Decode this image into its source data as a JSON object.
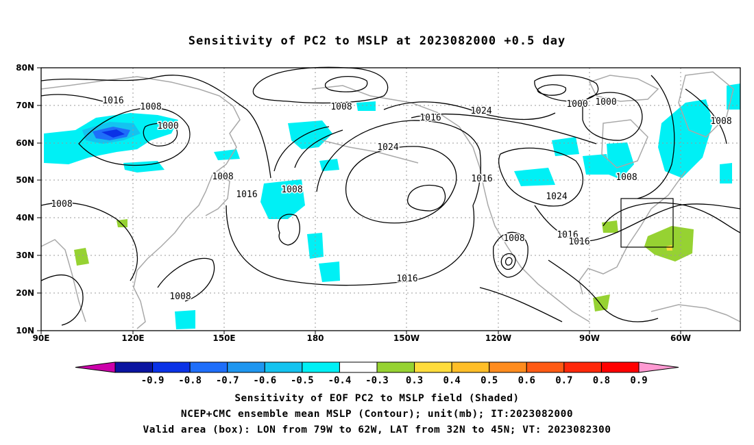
{
  "title": "Sensitivity of PC2 to MSLP at 2023082000 +0.5 day",
  "axes": {
    "lat_labels": [
      "80N",
      "70N",
      "60N",
      "50N",
      "40N",
      "30N",
      "20N",
      "10N"
    ],
    "lon_labels": [
      "90E",
      "120E",
      "150E",
      "180",
      "150W",
      "120W",
      "90W",
      "60W"
    ]
  },
  "contour_labels": [
    {
      "text": "1016"
    },
    {
      "text": "1008"
    },
    {
      "text": "1000"
    },
    {
      "text": "1008"
    },
    {
      "text": "1008"
    },
    {
      "text": "1016"
    },
    {
      "text": "1008"
    },
    {
      "text": "1008"
    },
    {
      "text": "1008"
    },
    {
      "text": "1016"
    },
    {
      "text": "1024"
    },
    {
      "text": "1016"
    },
    {
      "text": "1016"
    },
    {
      "text": "1024"
    },
    {
      "text": "1008"
    },
    {
      "text": "1008"
    },
    {
      "text": "1016"
    },
    {
      "text": "1016"
    },
    {
      "text": "1000"
    },
    {
      "text": "1000"
    },
    {
      "text": "1024"
    },
    {
      "text": "1008"
    }
  ],
  "colorbar": {
    "colors": [
      "#cc00aa",
      "#0a14a0",
      "#0a32e6",
      "#1e6efa",
      "#1e96f0",
      "#14c3f0",
      "#00f0f5",
      "#ffffff",
      "#96d232",
      "#ffdc3c",
      "#ffbe28",
      "#ff8c1e",
      "#ff5a14",
      "#ff280a",
      "#ff0000",
      "#ff9ad2"
    ],
    "labels": [
      "-0.9",
      "-0.8",
      "-0.7",
      "-0.6",
      "-0.5",
      "-0.4",
      "-0.3",
      "0.3",
      "0.4",
      "0.5",
      "0.6",
      "0.7",
      "0.8",
      "0.9"
    ]
  },
  "captions": {
    "line1": "Sensitivity of EOF PC2 to MSLP field (Shaded)",
    "line2": "NCEP+CMC ensemble mean MSLP (Contour); unit(mb); IT:2023082000",
    "line3": "Valid area (box): LON from 79W to 62W, LAT from 32N to 45N; VT: 2023082300"
  }
}
